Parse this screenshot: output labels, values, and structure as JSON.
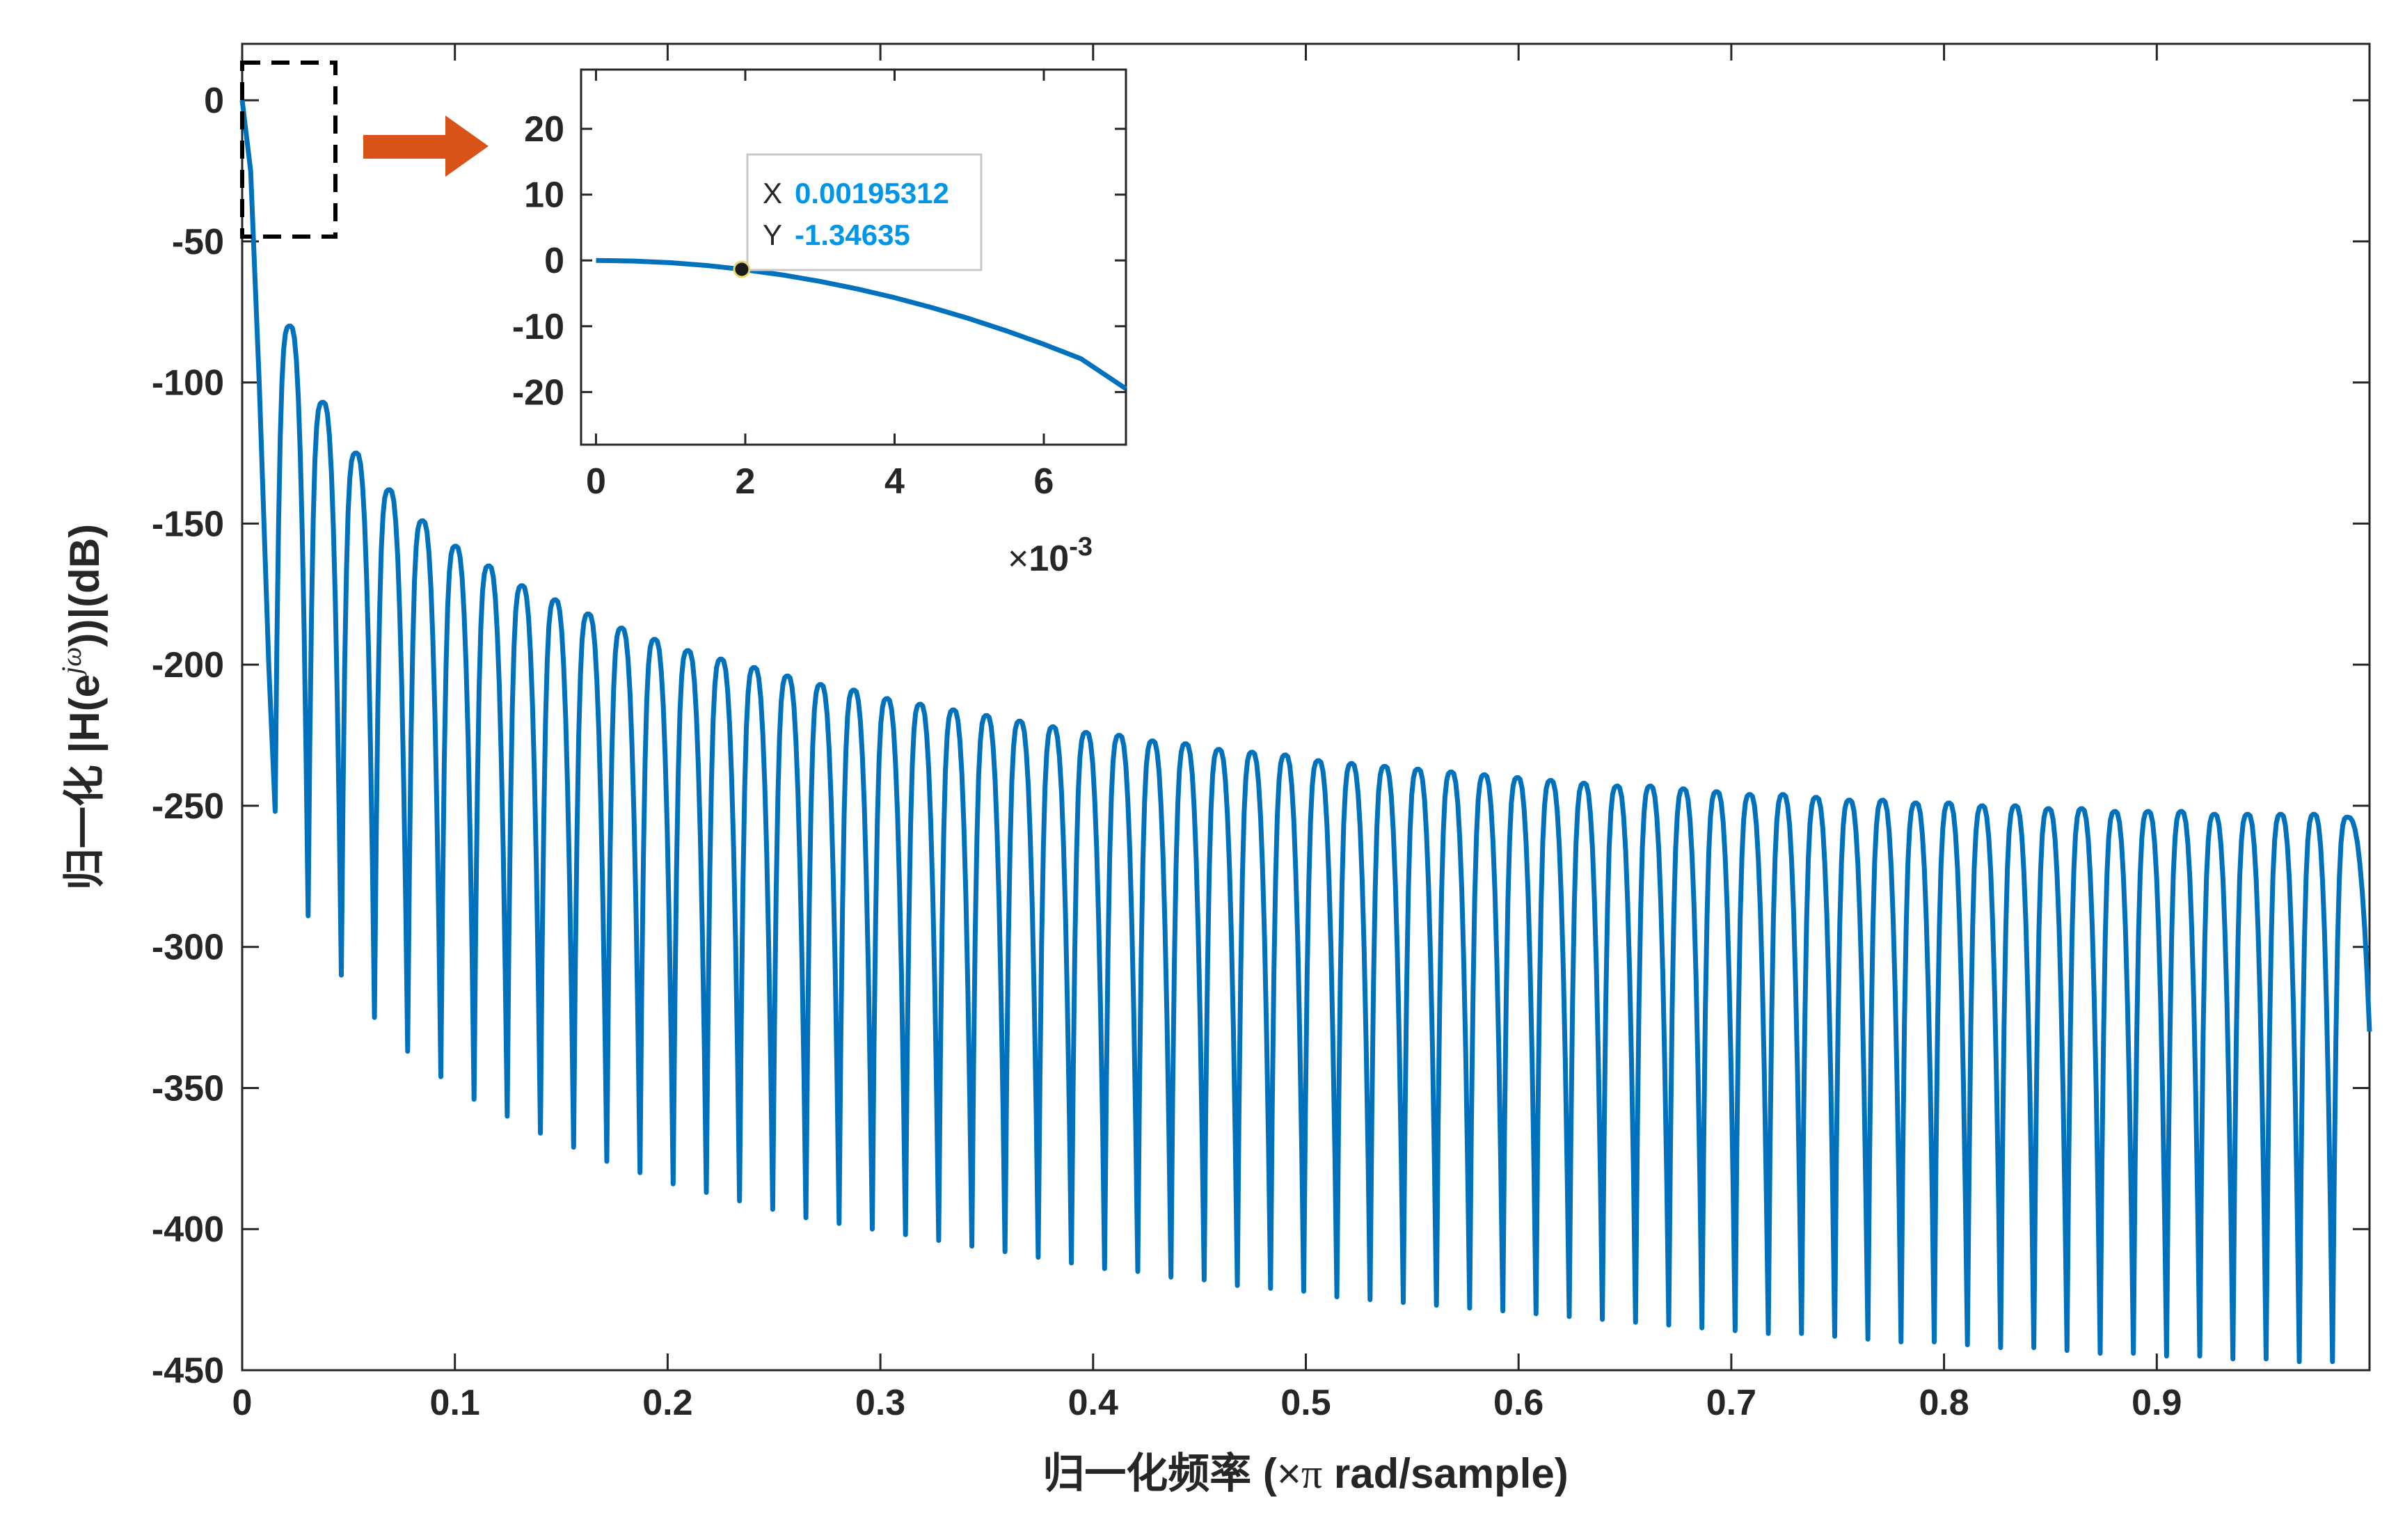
{
  "colors": {
    "line": "#0072BD",
    "arrow": "#D95319",
    "tooltip_value": "#0096E8",
    "axis": "#262626",
    "background": "#ffffff"
  },
  "chart_data": [
    {
      "type": "line",
      "xlabel": "归一化频率 (×π rad/sample)",
      "ylabel": "归一化 |H(e^{jω})|(dB)",
      "ylabel_parts": {
        "prefix": "归一化 |H(e",
        "exponent": "jω",
        "suffix": "))|(dB)"
      },
      "xlabel_parts": {
        "prefix": "归一化频率 (",
        "times": "×",
        "pi": "π",
        "suffix": " rad/sample)"
      },
      "xlim": [
        0,
        1
      ],
      "ylim": [
        -450,
        20
      ],
      "xticks": [
        0,
        0.1,
        0.2,
        0.3,
        0.4,
        0.5,
        0.6,
        0.7,
        0.8,
        0.9
      ],
      "xtick_labels": [
        "0",
        "0.1",
        "0.2",
        "0.3",
        "0.4",
        "0.5",
        "0.6",
        "0.7",
        "0.8",
        "0.9"
      ],
      "yticks": [
        0,
        -50,
        -100,
        -150,
        -200,
        -250,
        -300,
        -350,
        -400,
        -450
      ],
      "ytick_labels": [
        "0",
        "-50",
        "-100",
        "-150",
        "-200",
        "-250",
        "-300",
        "-350",
        "-400",
        "-450"
      ],
      "grid": false,
      "series": [
        {
          "description_of_shape": "mainlobe then sidelobes",
          "mainlobe": {
            "x": [
              0,
              0.004,
              0.008,
              0.0125,
              0.0155
            ],
            "y": [
              0,
              -25,
              -100,
              -200,
              -252
            ]
          },
          "sidelobe_peaks": {
            "x": [
              0.0227,
              0.0382,
              0.0538,
              0.0694,
              0.085,
              0.1006,
              0.1162,
              0.1318,
              0.1474,
              0.163,
              0.1786,
              0.1942,
              0.2098,
              0.2254,
              0.241,
              0.2566,
              0.2722,
              0.2878,
              0.3034,
              0.319,
              0.3346,
              0.3502,
              0.3658,
              0.3814,
              0.397,
              0.4126,
              0.4282,
              0.4438,
              0.4594,
              0.475,
              0.4906,
              0.5062,
              0.5218,
              0.5374,
              0.553,
              0.5686,
              0.5842,
              0.5998,
              0.6154,
              0.631,
              0.6466,
              0.6622,
              0.6778,
              0.6934,
              0.709,
              0.7246,
              0.7402,
              0.7558,
              0.7714,
              0.787,
              0.8026,
              0.8182,
              0.8338,
              0.8494,
              0.865,
              0.8806,
              0.8962,
              0.9118,
              0.9274,
              0.943,
              0.9586,
              0.9742,
              0.9898
            ],
            "y": [
              -80,
              -107,
              -125,
              -138,
              -149,
              -158,
              -165,
              -172,
              -177,
              -182,
              -187,
              -191,
              -195,
              -198,
              -201,
              -204,
              -207,
              -209,
              -212,
              -214,
              -216,
              -218,
              -220,
              -222,
              -224,
              -225,
              -227,
              -228,
              -230,
              -231,
              -232,
              -234,
              -235,
              -236,
              -237,
              -238,
              -239,
              -240,
              -241,
              -242,
              -243,
              -243,
              -244,
              -245,
              -246,
              -246,
              -247,
              -248,
              -248,
              -249,
              -249,
              -250,
              -250,
              -251,
              -251,
              -252,
              -252,
              -252,
              -253,
              -253,
              -253,
              -253,
              -254
            ]
          },
          "nulls": {
            "x": [
              0.0155,
              0.031,
              0.0466,
              0.0622,
              0.0778,
              0.0934,
              0.109,
              0.1246,
              0.1402,
              0.1558,
              0.1714,
              0.187,
              0.2026,
              0.2182,
              0.2338,
              0.2494,
              0.265,
              0.2806,
              0.2962,
              0.3118,
              0.3274,
              0.343,
              0.3586,
              0.3742,
              0.3898,
              0.4054,
              0.421,
              0.4366,
              0.4522,
              0.4678,
              0.4834,
              0.499,
              0.5146,
              0.5302,
              0.5458,
              0.5614,
              0.577,
              0.5926,
              0.6082,
              0.6238,
              0.6394,
              0.655,
              0.6706,
              0.6862,
              0.7018,
              0.7174,
              0.733,
              0.7486,
              0.7642,
              0.7798,
              0.7954,
              0.811,
              0.8266,
              0.8422,
              0.8578,
              0.8734,
              0.889,
              0.9046,
              0.9202,
              0.9358,
              0.9514,
              0.967,
              0.9826
            ],
            "y": [
              -252,
              -289,
              -310,
              -325,
              -337,
              -346,
              -354,
              -360,
              -366,
              -371,
              -376,
              -380,
              -384,
              -387,
              -390,
              -393,
              -396,
              -398,
              -400,
              -402,
              -404,
              -406,
              -408,
              -410,
              -412,
              -414,
              -415,
              -417,
              -418,
              -420,
              -421,
              -422,
              -424,
              -425,
              -426,
              -427,
              -428,
              -429,
              -430,
              -431,
              -432,
              -433,
              -434,
              -435,
              -436,
              -437,
              -437,
              -438,
              -439,
              -440,
              -440,
              -441,
              -442,
              -442,
              -443,
              -444,
              -444,
              -445,
              -445,
              -446,
              -446,
              -447,
              -447
            ]
          },
          "end": {
            "x": 1.0,
            "y": -330
          }
        }
      ]
    },
    {
      "type": "line",
      "role": "inset zoom",
      "xlim": [
        -0.0002,
        0.0071
      ],
      "ylim": [
        -28,
        29
      ],
      "xticks": [
        0,
        0.002,
        0.004,
        0.006
      ],
      "xtick_labels": [
        "0",
        "2",
        "4",
        "6"
      ],
      "x_exponent_label": {
        "times": "×",
        "base": "10",
        "exp": "-3"
      },
      "yticks": [
        20,
        10,
        0,
        -10,
        -20
      ],
      "ytick_labels": [
        "20",
        "10",
        "0",
        "-10",
        "-20"
      ],
      "series": [
        {
          "x": [
            0,
            0.0005,
            0.001,
            0.0015,
            0.00195312,
            0.0025,
            0.003,
            0.0035,
            0.004,
            0.0045,
            0.005,
            0.0055,
            0.006,
            0.0065,
            0.0071
          ],
          "y": [
            0,
            -0.09,
            -0.35,
            -0.79,
            -1.34635,
            -2.21,
            -3.18,
            -4.33,
            -5.66,
            -7.17,
            -8.85,
            -10.71,
            -12.74,
            -14.95,
            -19.5
          ]
        }
      ],
      "datatip": {
        "x_key": "X",
        "x_value": "0.00195312",
        "y_key": "Y",
        "y_value": "-1.34635",
        "x": 0.00195312,
        "y": -1.34635
      }
    }
  ]
}
